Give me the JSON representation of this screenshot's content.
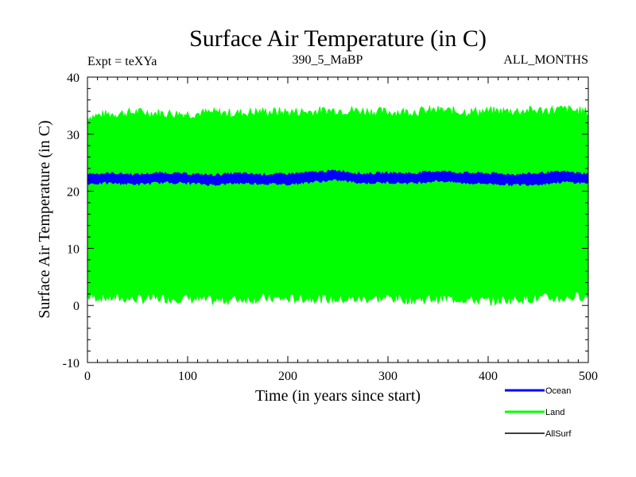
{
  "chart_data": {
    "type": "line",
    "title": "Surface Air Temperature (in C)",
    "subtitle_left": "Expt = teXYa",
    "subtitle_center": "390_5_MaBP",
    "subtitle_right": "ALL_MONTHS",
    "xlabel": "Time (in years since start)",
    "ylabel": "Surface Air Temperature (in C)",
    "xlim": [
      0,
      500
    ],
    "ylim": [
      -10,
      40
    ],
    "x_ticks": [
      0,
      100,
      200,
      300,
      400,
      500
    ],
    "y_ticks": [
      -10,
      0,
      10,
      20,
      30,
      40
    ],
    "x_tick_labels": [
      "0",
      "100",
      "200",
      "300",
      "400",
      "500"
    ],
    "y_tick_labels": [
      "-10",
      "0",
      "10",
      "20",
      "30",
      "40"
    ],
    "grid": false,
    "legend_position": "bottom-right",
    "series": [
      {
        "name": "Ocean",
        "color": "#0000ff",
        "style": "band",
        "upper": [
          [
            0,
            23.0
          ],
          [
            25,
            23.1
          ],
          [
            50,
            22.9
          ],
          [
            75,
            23.2
          ],
          [
            100,
            23.0
          ],
          [
            125,
            22.8
          ],
          [
            150,
            23.1
          ],
          [
            175,
            22.9
          ],
          [
            200,
            23.0
          ],
          [
            225,
            23.3
          ],
          [
            250,
            23.6
          ],
          [
            275,
            23.0
          ],
          [
            300,
            23.2
          ],
          [
            325,
            23.1
          ],
          [
            350,
            23.5
          ],
          [
            375,
            23.2
          ],
          [
            400,
            23.1
          ],
          [
            425,
            22.9
          ],
          [
            450,
            23.1
          ],
          [
            475,
            23.4
          ],
          [
            500,
            23.0
          ]
        ],
        "lower": [
          [
            0,
            21.4
          ],
          [
            25,
            21.5
          ],
          [
            50,
            21.3
          ],
          [
            75,
            21.6
          ],
          [
            100,
            21.5
          ],
          [
            125,
            21.2
          ],
          [
            150,
            21.5
          ],
          [
            175,
            21.4
          ],
          [
            200,
            21.3
          ],
          [
            225,
            21.7
          ],
          [
            250,
            22.0
          ],
          [
            275,
            21.5
          ],
          [
            300,
            21.6
          ],
          [
            325,
            21.5
          ],
          [
            350,
            21.9
          ],
          [
            375,
            21.5
          ],
          [
            400,
            21.4
          ],
          [
            425,
            21.2
          ],
          [
            450,
            21.3
          ],
          [
            475,
            21.7
          ],
          [
            500,
            21.5
          ]
        ]
      },
      {
        "name": "Land",
        "color": "#00ff00",
        "style": "band",
        "upper": [
          [
            0,
            33.0
          ],
          [
            25,
            33.5
          ],
          [
            50,
            33.8
          ],
          [
            75,
            33.6
          ],
          [
            100,
            33.5
          ],
          [
            125,
            33.7
          ],
          [
            150,
            33.6
          ],
          [
            175,
            33.9
          ],
          [
            200,
            33.8
          ],
          [
            225,
            33.9
          ],
          [
            250,
            34.2
          ],
          [
            275,
            34.0
          ],
          [
            300,
            33.8
          ],
          [
            325,
            33.9
          ],
          [
            350,
            34.1
          ],
          [
            375,
            33.9
          ],
          [
            400,
            33.9
          ],
          [
            425,
            34.0
          ],
          [
            450,
            34.1
          ],
          [
            475,
            34.3
          ],
          [
            500,
            33.8
          ]
        ],
        "lower": [
          [
            0,
            1.6
          ],
          [
            25,
            1.4
          ],
          [
            50,
            1.2
          ],
          [
            75,
            1.3
          ],
          [
            100,
            1.3
          ],
          [
            125,
            0.9
          ],
          [
            150,
            1.2
          ],
          [
            175,
            1.3
          ],
          [
            200,
            1.2
          ],
          [
            225,
            1.4
          ],
          [
            250,
            1.1
          ],
          [
            275,
            1.2
          ],
          [
            300,
            1.4
          ],
          [
            325,
            1.1
          ],
          [
            350,
            1.3
          ],
          [
            375,
            1.2
          ],
          [
            400,
            0.8
          ],
          [
            425,
            1.2
          ],
          [
            450,
            1.3
          ],
          [
            475,
            1.3
          ],
          [
            500,
            1.8
          ]
        ]
      },
      {
        "name": "AllSurf",
        "color": "#000000",
        "style": "line",
        "values": []
      }
    ]
  }
}
